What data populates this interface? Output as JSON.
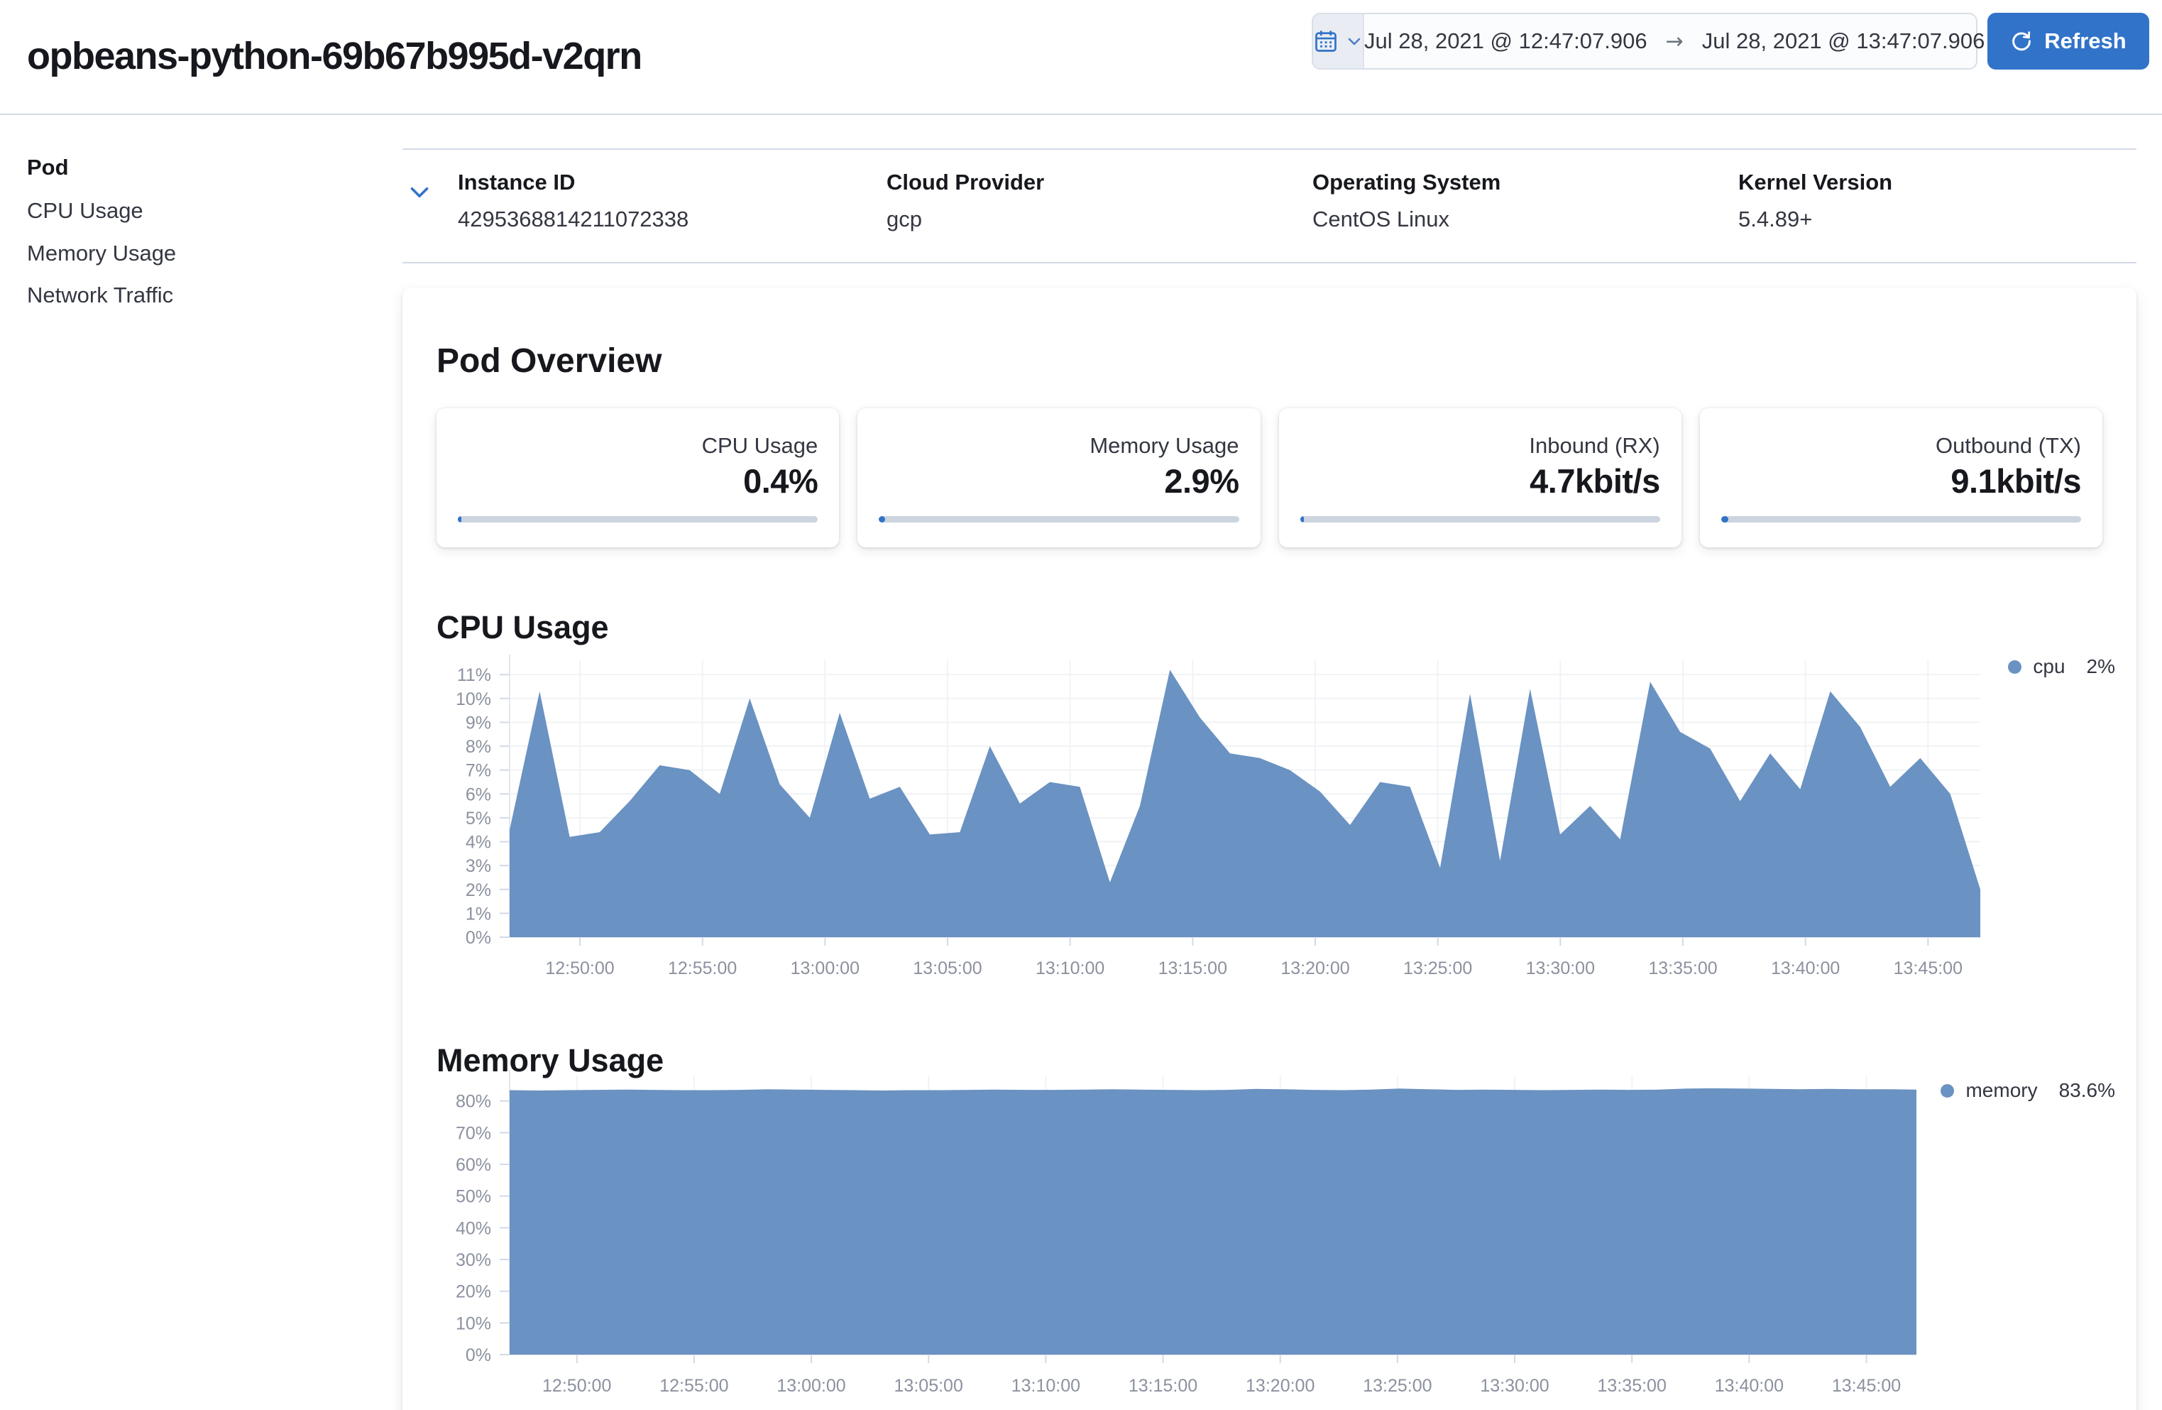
{
  "header": {
    "title": "opbeans-python-69b67b995d-v2qrn",
    "time_range": {
      "start": "Jul 28, 2021 @ 12:47:07.906",
      "end": "Jul 28, 2021 @ 13:47:07.906"
    },
    "refresh_label": "Refresh"
  },
  "icons": {
    "arrow_right": "→"
  },
  "sidebar": {
    "heading": "Pod",
    "items": [
      {
        "label": "CPU Usage"
      },
      {
        "label": "Memory Usage"
      },
      {
        "label": "Network Traffic"
      }
    ]
  },
  "metadata": {
    "fields": [
      {
        "label": "Instance ID",
        "value": "4295368814211072338"
      },
      {
        "label": "Cloud Provider",
        "value": "gcp"
      },
      {
        "label": "Operating System",
        "value": "CentOS Linux"
      },
      {
        "label": "Kernel Version",
        "value": "5.4.89+"
      }
    ]
  },
  "overview": {
    "title": "Pod Overview",
    "cards": [
      {
        "label": "CPU Usage",
        "value": "0.4%",
        "bar_pct": 0.9
      },
      {
        "label": "Memory Usage",
        "value": "2.9%",
        "bar_pct": 1.8
      },
      {
        "label": "Inbound (RX)",
        "value": "4.7kbit/s",
        "bar_pct": 1.1
      },
      {
        "label": "Outbound (TX)",
        "value": "9.1kbit/s",
        "bar_pct": 2.0
      }
    ]
  },
  "colors": {
    "accent": "#3173c8",
    "chart_fill": "#6a92c2",
    "progress_track": "#ccd4e0",
    "divider": "#d3dae6",
    "axis_label": "#8b919e"
  },
  "chart_data": [
    {
      "type": "area",
      "title": "CPU Usage",
      "x_range": [
        "12:47:08",
        "13:47:08"
      ],
      "x_ticks": [
        "12:50:00",
        "12:55:00",
        "13:00:00",
        "13:05:00",
        "13:10:00",
        "13:15:00",
        "13:20:00",
        "13:25:00",
        "13:30:00",
        "13:35:00",
        "13:40:00",
        "13:45:00"
      ],
      "y_ticks": [
        0,
        1,
        2,
        3,
        4,
        5,
        6,
        7,
        8,
        9,
        10,
        11
      ],
      "y_unit": "%",
      "ylim": [
        0,
        11.6
      ],
      "grid": true,
      "legend_position": "right",
      "color": "#6a92c2",
      "series": [
        {
          "name": "cpu",
          "legend_value": "2%",
          "values": [
            4.5,
            10.3,
            4.2,
            4.4,
            5.7,
            7.2,
            7.0,
            6.0,
            10.0,
            6.4,
            5.0,
            9.4,
            5.8,
            6.3,
            4.3,
            4.4,
            8.0,
            5.6,
            6.5,
            6.3,
            2.3,
            5.5,
            11.2,
            9.2,
            7.7,
            7.5,
            7.0,
            6.1,
            4.7,
            6.5,
            6.3,
            2.9,
            10.2,
            3.2,
            10.4,
            4.3,
            5.5,
            4.1,
            10.7,
            8.6,
            7.9,
            5.7,
            7.7,
            6.2,
            10.3,
            8.8,
            6.3,
            7.5,
            6.0,
            2.0
          ]
        }
      ]
    },
    {
      "type": "area",
      "title": "Memory Usage",
      "x_range": [
        "12:47:08",
        "13:47:08"
      ],
      "x_ticks": [
        "12:50:00",
        "12:55:00",
        "13:00:00",
        "13:05:00",
        "13:10:00",
        "13:15:00",
        "13:20:00",
        "13:25:00",
        "13:30:00",
        "13:35:00",
        "13:40:00",
        "13:45:00"
      ],
      "y_ticks": [
        0,
        10,
        20,
        30,
        40,
        50,
        60,
        70,
        80
      ],
      "y_unit": "%",
      "ylim": [
        0,
        88
      ],
      "grid": true,
      "legend_position": "right",
      "color": "#6a92c2",
      "series": [
        {
          "name": "memory",
          "legend_value": "83.6%",
          "values": [
            83.4,
            83.3,
            83.4,
            83.5,
            83.6,
            83.5,
            83.4,
            83.4,
            83.5,
            83.7,
            83.6,
            83.5,
            83.4,
            83.3,
            83.4,
            83.4,
            83.5,
            83.6,
            83.5,
            83.5,
            83.6,
            83.7,
            83.6,
            83.5,
            83.4,
            83.5,
            83.8,
            83.7,
            83.5,
            83.4,
            83.6,
            83.9,
            83.7,
            83.5,
            83.6,
            83.5,
            83.4,
            83.5,
            83.6,
            83.5,
            83.6,
            83.9,
            84.0,
            83.9,
            83.8,
            83.7,
            83.8,
            83.7,
            83.7,
            83.6
          ]
        }
      ]
    }
  ]
}
